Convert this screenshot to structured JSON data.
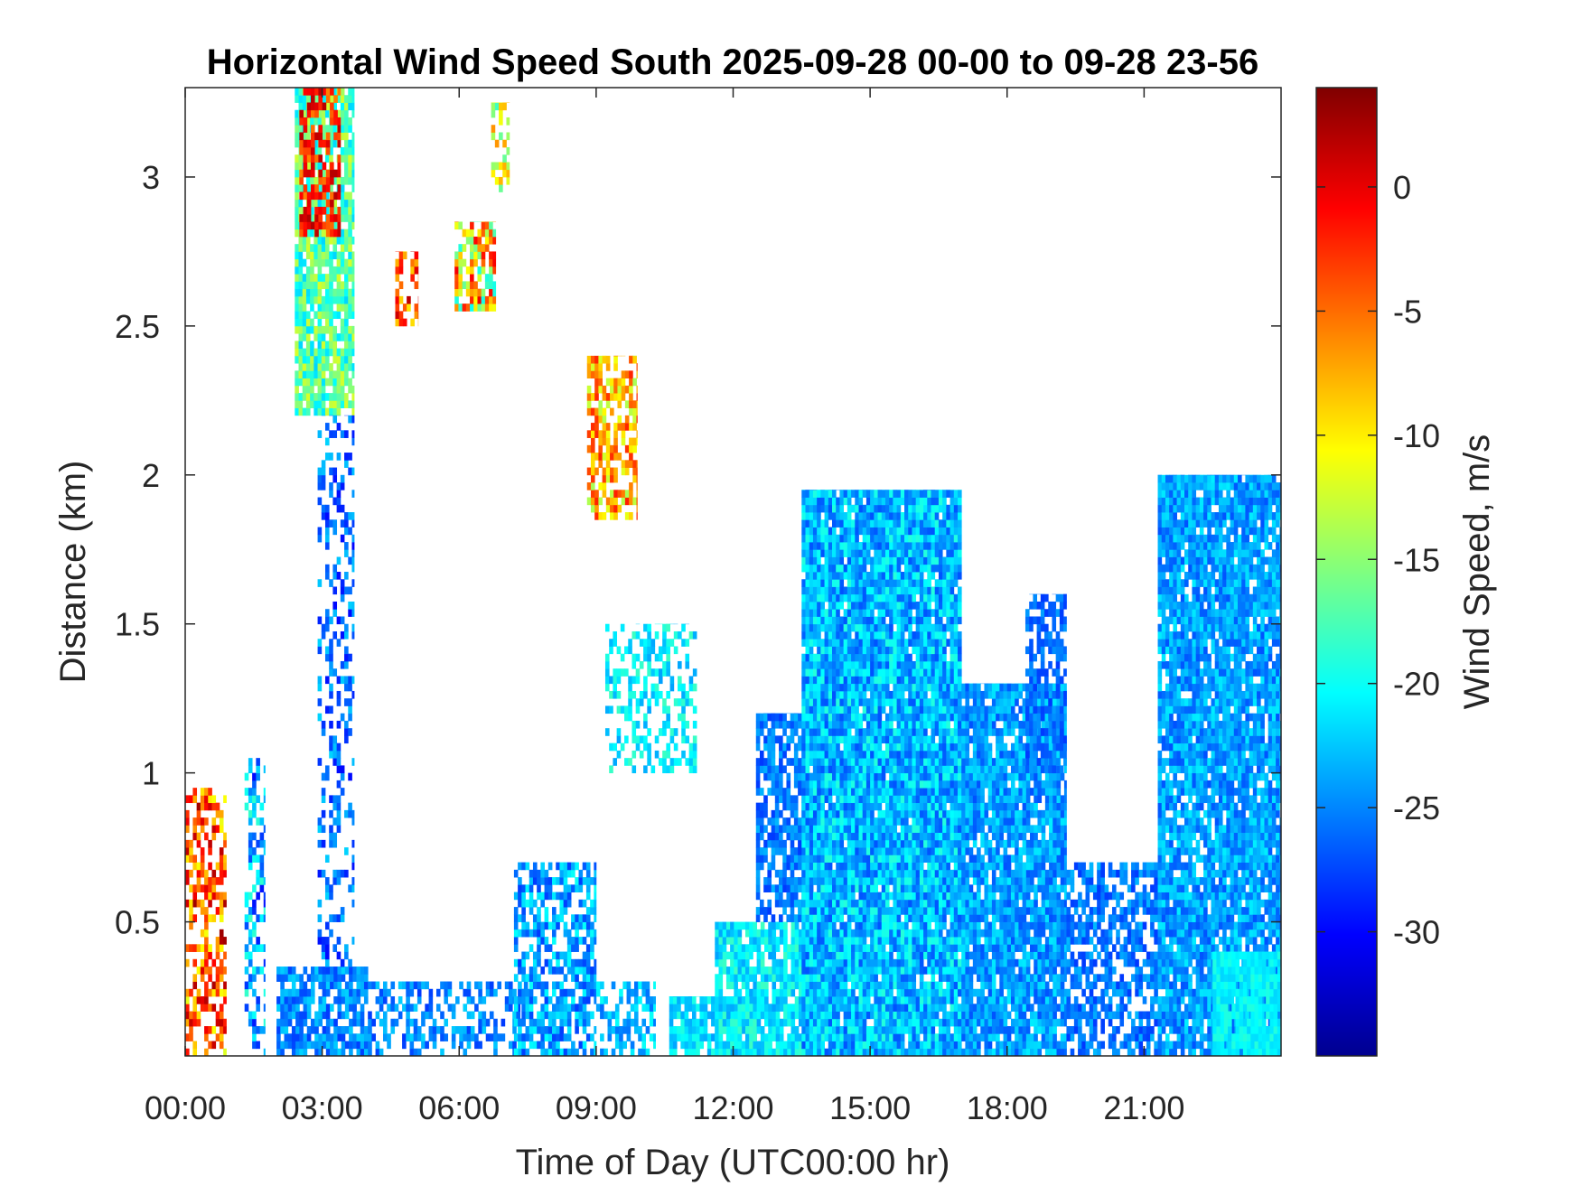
{
  "chart_data": {
    "type": "heatmap",
    "title": "Horizontal Wind Speed South 2025-09-28 00-00 to 09-28 23-56",
    "xlabel": "Time of Day (UTC00:00 hr)",
    "ylabel": "Distance (km)",
    "colorbar_label": "Wind Speed, m/s",
    "colormap": "jet",
    "xlim_hours": [
      0,
      24
    ],
    "ylim_km": [
      0.05,
      3.3
    ],
    "clim": [
      -35,
      4
    ],
    "x_ticks": [
      {
        "hour": 0,
        "label": "00:00"
      },
      {
        "hour": 3,
        "label": "03:00"
      },
      {
        "hour": 6,
        "label": "06:00"
      },
      {
        "hour": 9,
        "label": "09:00"
      },
      {
        "hour": 12,
        "label": "12:00"
      },
      {
        "hour": 15,
        "label": "15:00"
      },
      {
        "hour": 18,
        "label": "18:00"
      },
      {
        "hour": 21,
        "label": "21:00"
      }
    ],
    "y_ticks": [
      {
        "km": 0.5,
        "label": "0.5"
      },
      {
        "km": 1,
        "label": "1"
      },
      {
        "km": 1.5,
        "label": "1.5"
      },
      {
        "km": 2,
        "label": "2"
      },
      {
        "km": 2.5,
        "label": "2.5"
      },
      {
        "km": 3,
        "label": "3"
      }
    ],
    "colorbar_ticks": [
      {
        "value": 0,
        "label": "0"
      },
      {
        "value": -5,
        "label": "-5"
      },
      {
        "value": -10,
        "label": "-10"
      },
      {
        "value": -15,
        "label": "-15"
      },
      {
        "value": -20,
        "label": "-20"
      },
      {
        "value": -25,
        "label": "-25"
      },
      {
        "value": -30,
        "label": "-30"
      }
    ],
    "grid": false,
    "regions": [
      {
        "t0": 0.0,
        "t1": 0.9,
        "dmin": 0.05,
        "dmax": 0.95,
        "vmin": -12,
        "vmax": 3,
        "density": 0.55
      },
      {
        "t0": 1.3,
        "t1": 1.75,
        "dmin": 0.05,
        "dmax": 1.05,
        "vmin": -30,
        "vmax": -18,
        "density": 0.5
      },
      {
        "t0": 2.0,
        "t1": 4.0,
        "dmin": 0.05,
        "dmax": 0.35,
        "vmin": -28,
        "vmax": -22,
        "density": 0.8
      },
      {
        "t0": 2.4,
        "t1": 3.7,
        "dmin": 2.2,
        "dmax": 3.3,
        "vmin": -22,
        "vmax": -12,
        "density": 0.85
      },
      {
        "t0": 2.5,
        "t1": 3.4,
        "dmin": 2.8,
        "dmax": 3.3,
        "vmin": -6,
        "vmax": 2,
        "density": 0.55
      },
      {
        "t0": 2.9,
        "t1": 3.7,
        "dmin": 0.35,
        "dmax": 2.2,
        "vmin": -30,
        "vmax": -22,
        "density": 0.35
      },
      {
        "t0": 4.6,
        "t1": 5.1,
        "dmin": 2.5,
        "dmax": 2.75,
        "vmin": -10,
        "vmax": 2,
        "density": 0.6
      },
      {
        "t0": 5.9,
        "t1": 6.8,
        "dmin": 2.55,
        "dmax": 2.85,
        "vmin": -20,
        "vmax": 0,
        "density": 0.6
      },
      {
        "t0": 6.7,
        "t1": 7.1,
        "dmin": 2.95,
        "dmax": 3.25,
        "vmin": -18,
        "vmax": -6,
        "density": 0.5
      },
      {
        "t0": 4.0,
        "t1": 7.5,
        "dmin": 0.05,
        "dmax": 0.3,
        "vmin": -28,
        "vmax": -22,
        "density": 0.5
      },
      {
        "t0": 7.2,
        "t1": 9.0,
        "dmin": 0.05,
        "dmax": 0.7,
        "vmin": -28,
        "vmax": -20,
        "density": 0.7
      },
      {
        "t0": 8.8,
        "t1": 9.9,
        "dmin": 1.85,
        "dmax": 2.4,
        "vmin": -14,
        "vmax": -2,
        "density": 0.6
      },
      {
        "t0": 9.0,
        "t1": 10.3,
        "dmin": 0.05,
        "dmax": 0.3,
        "vmin": -26,
        "vmax": -20,
        "density": 0.5
      },
      {
        "t0": 9.2,
        "t1": 11.2,
        "dmin": 1.0,
        "dmax": 1.5,
        "vmin": -24,
        "vmax": -18,
        "density": 0.45
      },
      {
        "t0": 10.6,
        "t1": 12.5,
        "dmin": 0.05,
        "dmax": 0.25,
        "vmin": -24,
        "vmax": -19,
        "density": 0.8
      },
      {
        "t0": 11.6,
        "t1": 14.0,
        "dmin": 0.05,
        "dmax": 0.5,
        "vmin": -24,
        "vmax": -18,
        "density": 0.85
      },
      {
        "t0": 12.5,
        "t1": 14.0,
        "dmin": 0.5,
        "dmax": 1.2,
        "vmin": -28,
        "vmax": -23,
        "density": 0.7
      },
      {
        "t0": 13.5,
        "t1": 17.0,
        "dmin": 0.05,
        "dmax": 1.95,
        "vmin": -27,
        "vmax": -19,
        "density": 0.95
      },
      {
        "t0": 17.0,
        "t1": 19.3,
        "dmin": 0.05,
        "dmax": 1.3,
        "vmin": -27,
        "vmax": -21,
        "density": 0.9
      },
      {
        "t0": 18.4,
        "t1": 19.3,
        "dmin": 1.0,
        "dmax": 1.6,
        "vmin": -28,
        "vmax": -24,
        "density": 0.7
      },
      {
        "t0": 19.3,
        "t1": 21.3,
        "dmin": 0.05,
        "dmax": 0.7,
        "vmin": -28,
        "vmax": -23,
        "density": 0.6
      },
      {
        "t0": 21.3,
        "t1": 24.0,
        "dmin": 0.05,
        "dmax": 2.0,
        "vmin": -27,
        "vmax": -21,
        "density": 0.9
      },
      {
        "t0": 22.5,
        "t1": 24.0,
        "dmin": 0.05,
        "dmax": 0.4,
        "vmin": -22,
        "vmax": -19,
        "density": 0.95
      }
    ]
  }
}
